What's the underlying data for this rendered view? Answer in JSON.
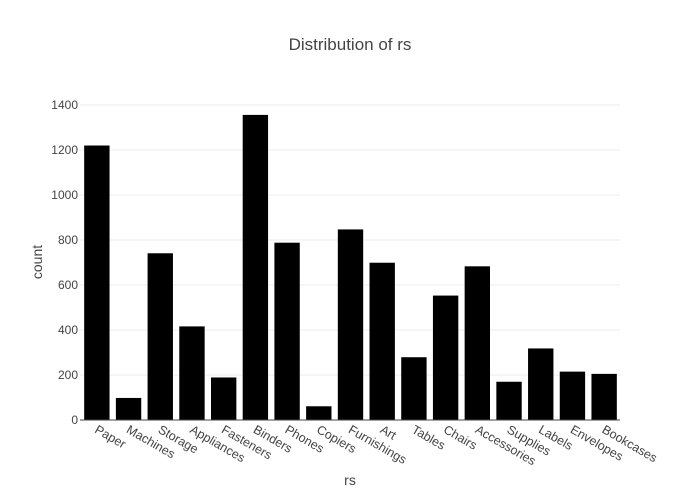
{
  "chart_data": {
    "type": "bar",
    "title": "Distribution of rs",
    "xlabel": "rs",
    "ylabel": "count",
    "categories": [
      "Paper",
      "Machines",
      "Storage",
      "Appliances",
      "Fasteners",
      "Binders",
      "Phones",
      "Copiers",
      "Furnishings",
      "Art",
      "Tables",
      "Chairs",
      "Accessories",
      "Supplies",
      "Labels",
      "Envelopes",
      "Bookcases"
    ],
    "values": [
      1220,
      98,
      741,
      416,
      189,
      1356,
      788,
      61,
      847,
      699,
      279,
      553,
      683,
      170,
      318,
      215,
      205
    ],
    "ylim": [
      0,
      1400
    ],
    "yticks": [
      0,
      200,
      400,
      600,
      800,
      1000,
      1200,
      1400
    ],
    "grid": true,
    "bar_color": "#000000",
    "grid_color": "#eeeeee"
  }
}
